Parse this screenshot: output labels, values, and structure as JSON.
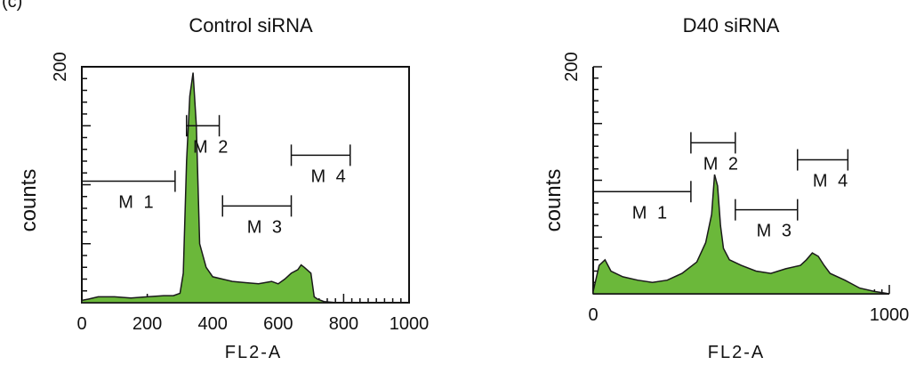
{
  "panel_label": "(c)",
  "chart_data": [
    {
      "type": "area",
      "title": "Control siRNA",
      "xlabel": "FL2-A",
      "ylabel": "counts",
      "xlim": [
        0,
        1000
      ],
      "ylim": [
        0,
        200
      ],
      "x_ticks": [
        "0",
        "200",
        "400",
        "600",
        "800",
        "1000"
      ],
      "y_ticks": [
        "200"
      ],
      "fill_color": "#6bb83a",
      "series": [
        {
          "x": [
            0,
            20,
            50,
            100,
            150,
            200,
            250,
            280,
            300,
            310,
            320,
            330,
            340,
            350,
            360,
            380,
            400,
            430,
            460,
            500,
            540,
            580,
            600,
            620,
            640,
            660,
            670,
            680,
            700,
            710,
            720,
            740,
            780,
            1000
          ],
          "values": [
            2,
            3,
            5,
            5,
            4,
            5,
            6,
            6,
            8,
            25,
            120,
            175,
            195,
            150,
            50,
            30,
            22,
            20,
            18,
            17,
            16,
            18,
            16,
            20,
            25,
            28,
            32,
            30,
            25,
            5,
            3,
            1,
            0,
            0
          ]
        }
      ],
      "markers": [
        {
          "name": "M1",
          "range": [
            0,
            285
          ],
          "level": 103
        },
        {
          "name": "M2",
          "range": [
            320,
            420
          ],
          "level": 150
        },
        {
          "name": "M3",
          "range": [
            430,
            640
          ],
          "level": 82
        },
        {
          "name": "M4",
          "range": [
            640,
            820
          ],
          "level": 125
        }
      ]
    },
    {
      "type": "area",
      "title": "D40 siRNA",
      "xlabel": "FL2-A",
      "ylabel": "counts",
      "xlim": [
        0,
        1000
      ],
      "ylim": [
        0,
        200
      ],
      "x_ticks": [
        "0",
        "1000"
      ],
      "y_ticks": [
        "200"
      ],
      "fill_color": "#6bb83a",
      "series": [
        {
          "x": [
            0,
            20,
            40,
            60,
            100,
            150,
            200,
            250,
            300,
            350,
            380,
            400,
            410,
            420,
            430,
            440,
            460,
            500,
            550,
            600,
            650,
            700,
            720,
            740,
            760,
            780,
            800,
            850,
            900,
            950,
            1000
          ],
          "values": [
            2,
            25,
            30,
            20,
            15,
            12,
            10,
            12,
            18,
            28,
            45,
            70,
            105,
            95,
            60,
            40,
            30,
            25,
            20,
            18,
            22,
            25,
            30,
            36,
            33,
            25,
            18,
            12,
            5,
            2,
            0
          ]
        }
      ],
      "markers": [
        {
          "name": "M1",
          "range": [
            0,
            330
          ],
          "level": 90
        },
        {
          "name": "M2",
          "range": [
            330,
            480
          ],
          "level": 133
        },
        {
          "name": "M3",
          "range": [
            480,
            690
          ],
          "level": 74
        },
        {
          "name": "M4",
          "range": [
            690,
            860
          ],
          "level": 118
        }
      ]
    }
  ]
}
